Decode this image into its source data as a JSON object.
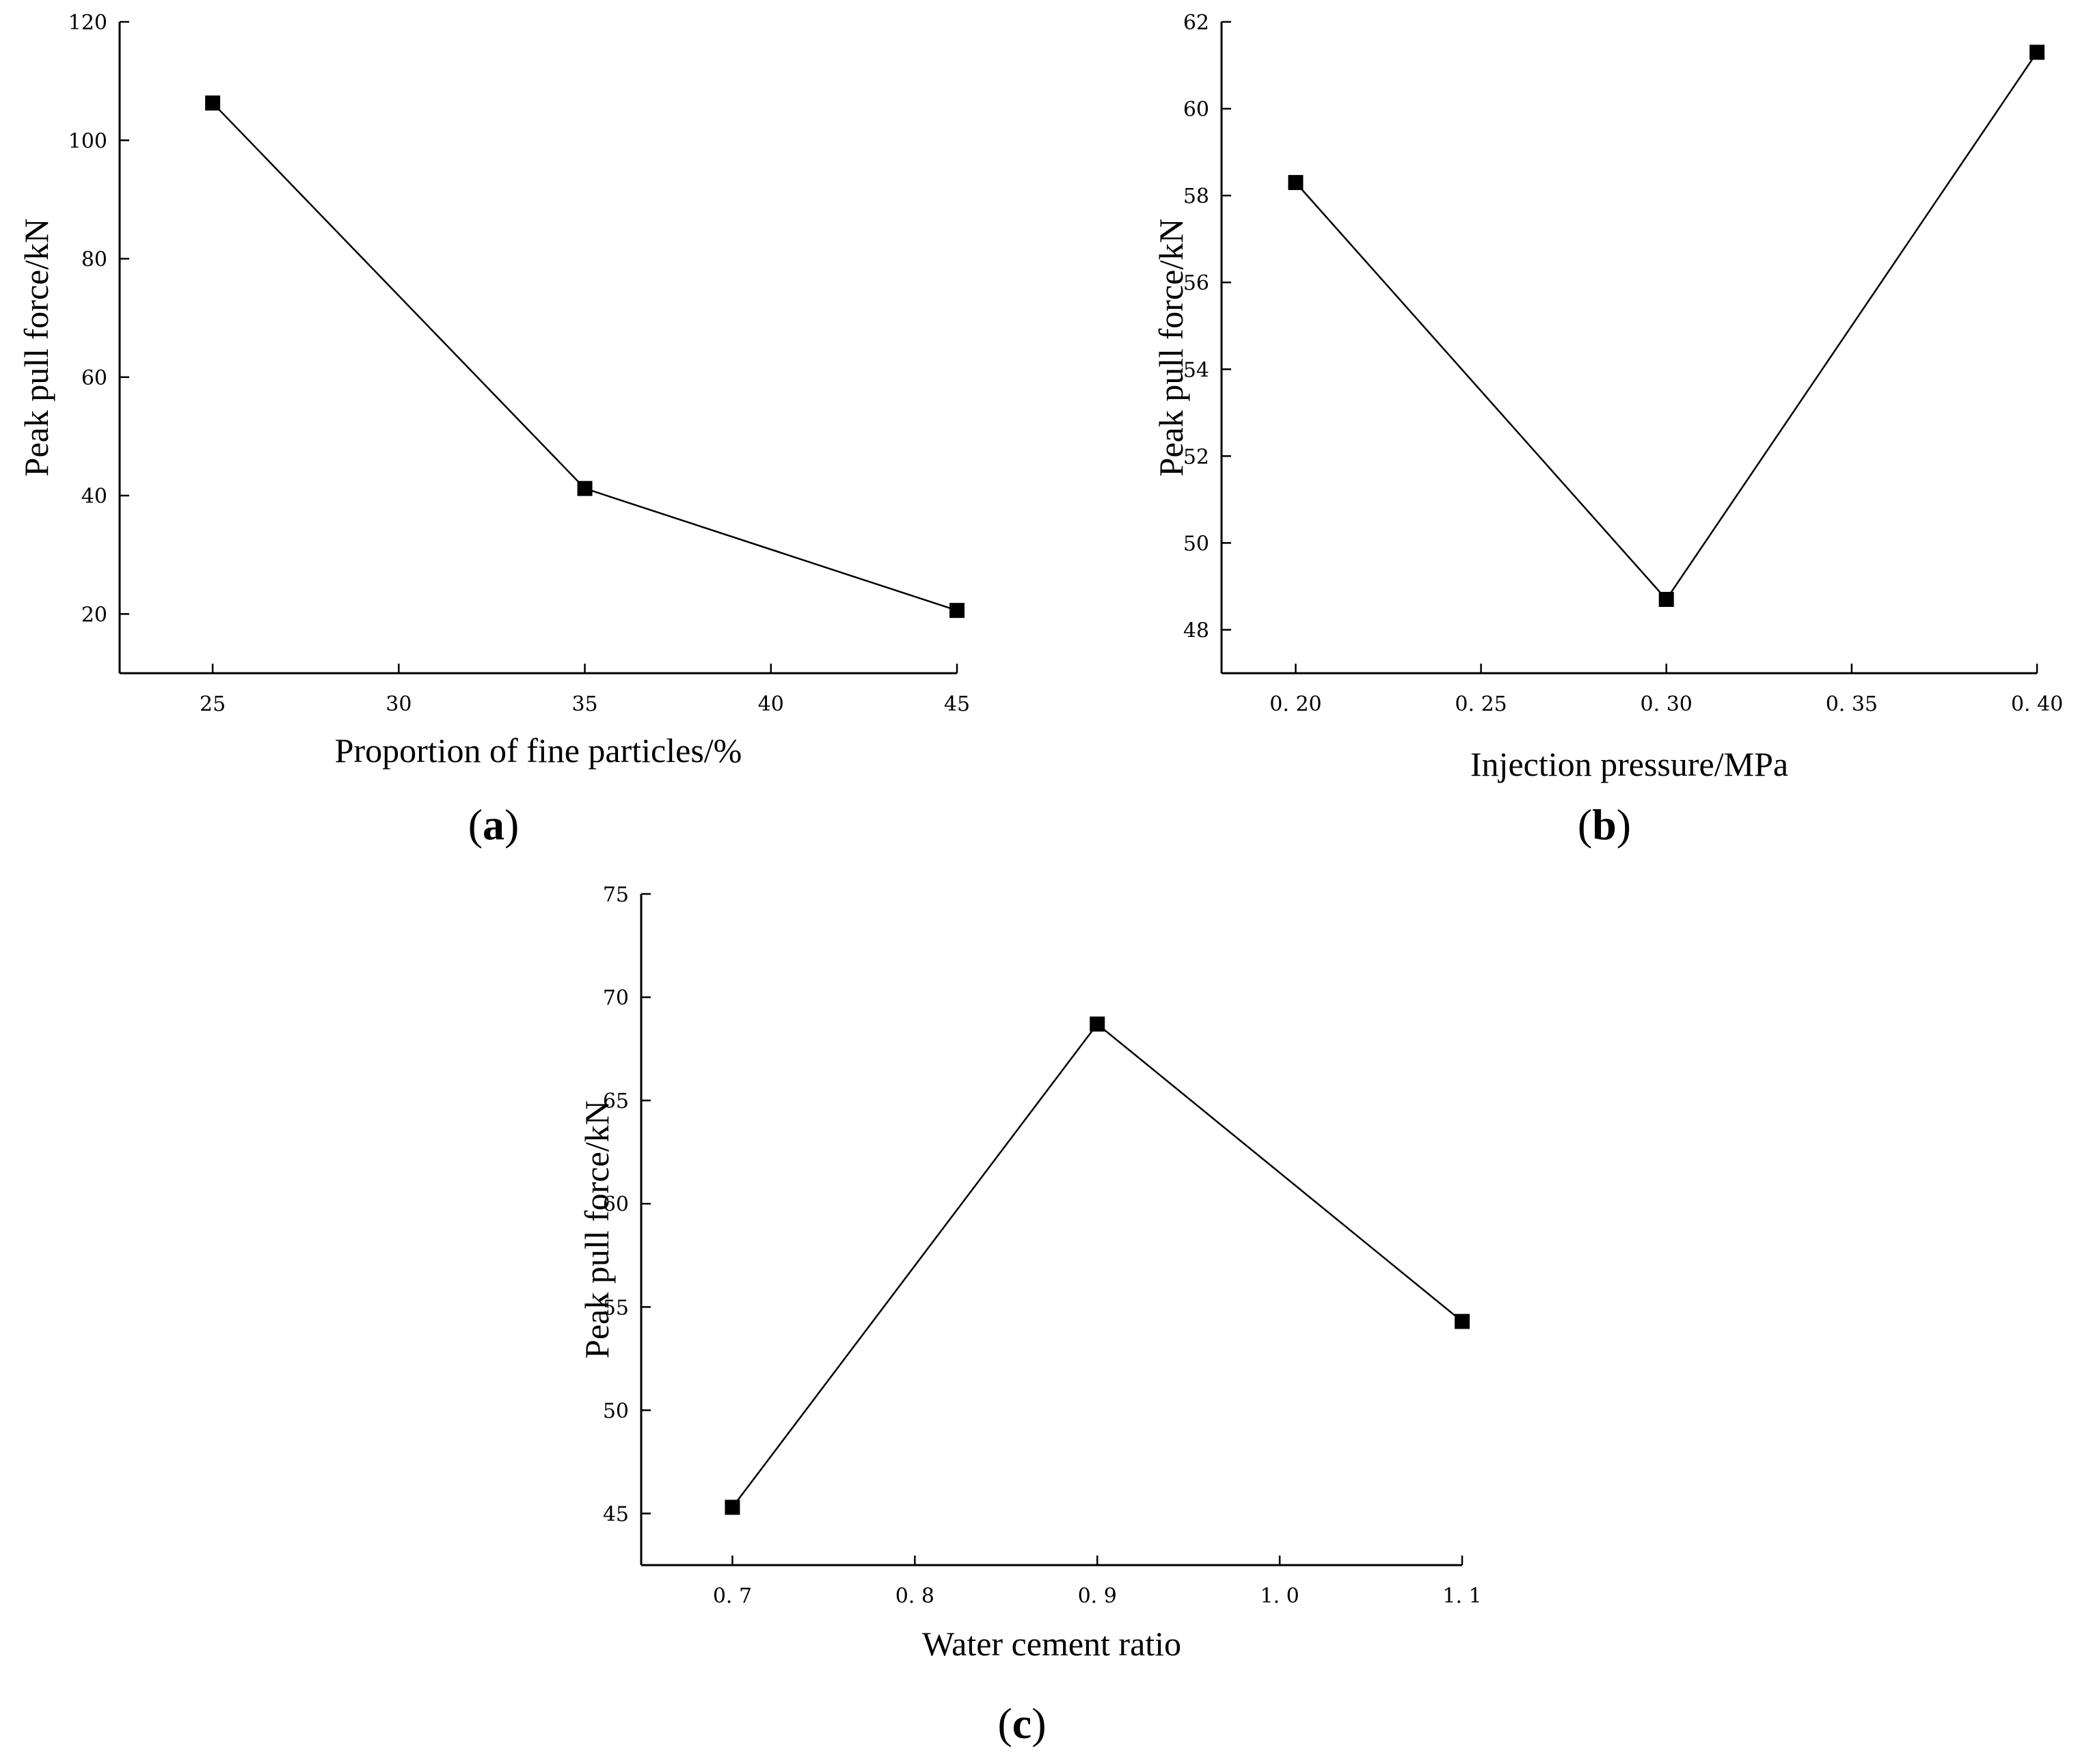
{
  "chart_data": [
    {
      "type": "line",
      "panel_label": "a",
      "xlabel": "Proportion of fine particles/%",
      "ylabel": "Peak pull force/kN",
      "x": [
        25,
        35,
        45
      ],
      "y": [
        106.3,
        41.2,
        20.6
      ],
      "xticks": [
        "25",
        "30",
        "35",
        "40",
        "45"
      ],
      "yticks": [
        "20",
        "40",
        "60",
        "80",
        "100",
        "120"
      ],
      "xlim": [
        22.5,
        45
      ],
      "ylim": [
        10,
        120
      ],
      "grid": false,
      "marker": "square"
    },
    {
      "type": "line",
      "panel_label": "b",
      "xlabel": "Injection pressure/MPa",
      "ylabel": "Peak pull force/kN",
      "x": [
        0.2,
        0.3,
        0.4
      ],
      "y": [
        58.3,
        48.7,
        61.3
      ],
      "xticks": [
        "0. 20",
        "0. 25",
        "0. 30",
        "0. 35",
        "0. 40"
      ],
      "yticks": [
        "48",
        "50",
        "52",
        "54",
        "56",
        "58",
        "60",
        "62"
      ],
      "xlim": [
        0.18,
        0.4
      ],
      "ylim": [
        47,
        62
      ],
      "grid": false,
      "marker": "square"
    },
    {
      "type": "line",
      "panel_label": "c",
      "xlabel": "Water cement ratio",
      "ylabel": "Peak pull force/kN",
      "x": [
        0.7,
        0.9,
        1.1
      ],
      "y": [
        45.3,
        68.7,
        54.3
      ],
      "xticks": [
        "0. 7",
        "0. 8",
        "0. 9",
        "1. 0",
        "1. 1"
      ],
      "yticks": [
        "45",
        "50",
        "55",
        "60",
        "65",
        "70",
        "75"
      ],
      "xlim": [
        0.65,
        1.1
      ],
      "ylim": [
        42.5,
        75
      ],
      "grid": false,
      "marker": "square"
    }
  ]
}
